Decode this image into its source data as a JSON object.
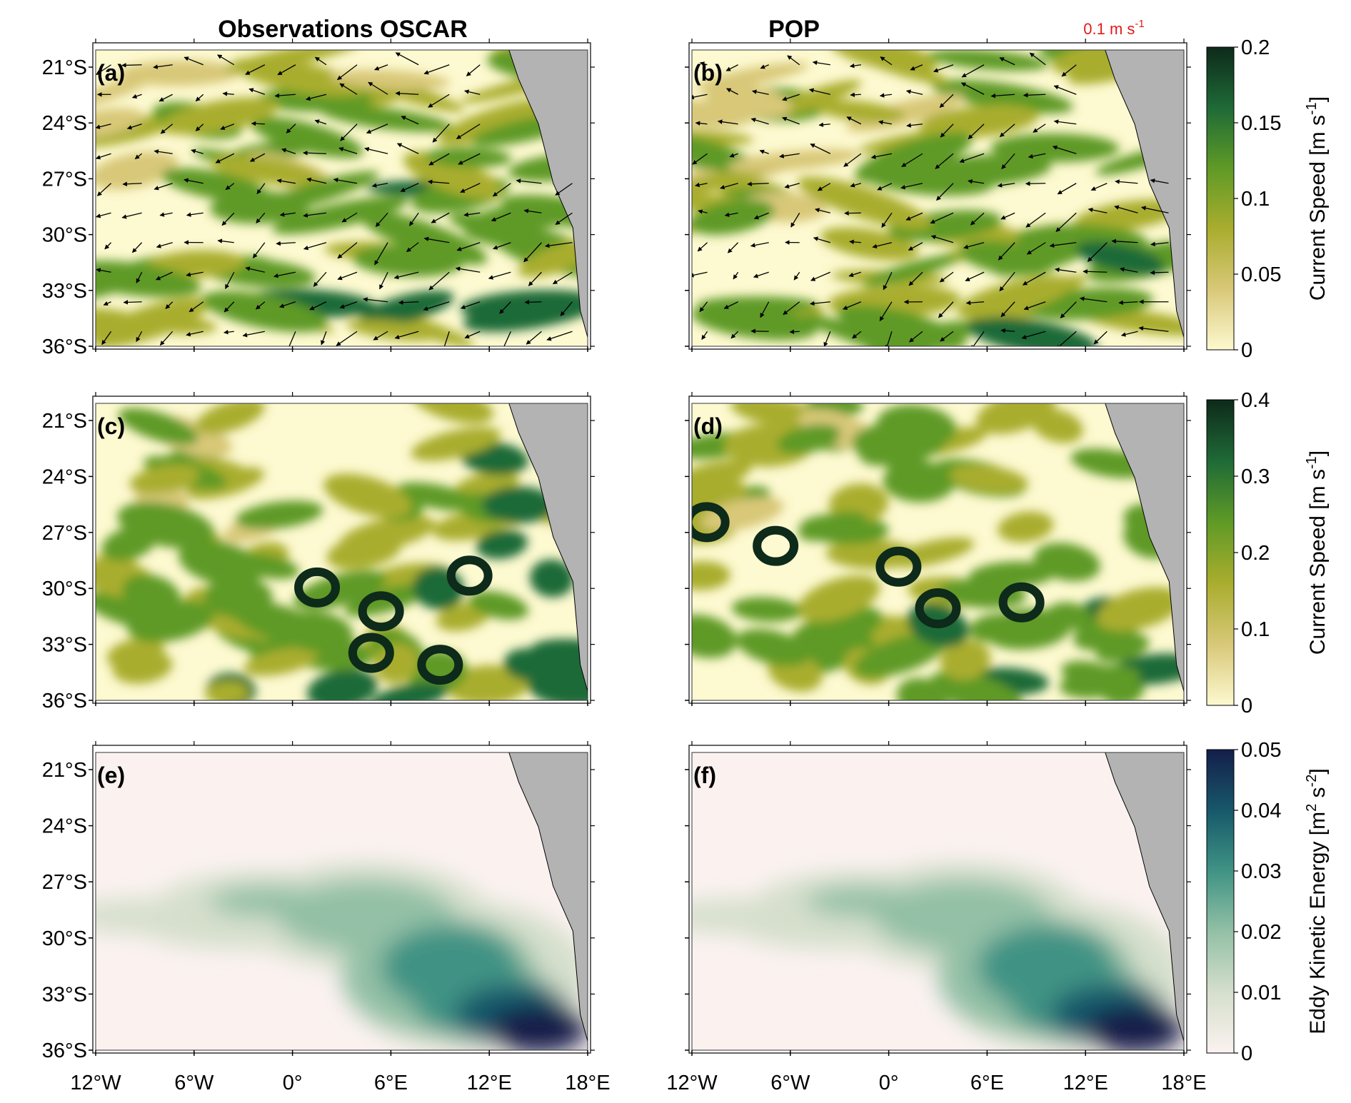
{
  "chart_data": {
    "type": "heatmap",
    "column_titles": [
      "Observations OSCAR",
      "POP"
    ],
    "x_ticks": [
      "12°W",
      "6°W",
      "0°",
      "6°E",
      "12°E",
      "18°E"
    ],
    "y_ticks": [
      "21°S",
      "24°S",
      "27°S",
      "30°S",
      "33°S",
      "36°S"
    ],
    "xlim": [
      -12,
      18
    ],
    "ylim": [
      -36,
      -20
    ],
    "panels": [
      {
        "label": "(a)",
        "row": 0,
        "col": 0,
        "field": "mean current speed with vectors"
      },
      {
        "label": "(b)",
        "row": 0,
        "col": 1,
        "field": "mean current speed with vectors"
      },
      {
        "label": "(c)",
        "row": 1,
        "col": 0,
        "field": "current speed"
      },
      {
        "label": "(d)",
        "row": 1,
        "col": 1,
        "field": "current speed"
      },
      {
        "label": "(e)",
        "row": 2,
        "col": 0,
        "field": "eddy kinetic energy"
      },
      {
        "label": "(f)",
        "row": 2,
        "col": 1,
        "field": "eddy kinetic energy"
      }
    ],
    "reference_vector": {
      "label": "0.1 m s",
      "exponent": "-1",
      "color": "#e41a1c"
    },
    "colorbars": [
      {
        "label": "Current Speed [m s",
        "exponent": "-1",
        "suffix": "]",
        "range": [
          0,
          0.2
        ],
        "ticks": [
          "0",
          "0.05",
          "0.1",
          "0.15",
          "0.2"
        ],
        "tick_values": [
          0,
          0.05,
          0.1,
          0.15,
          0.2
        ],
        "colors": [
          "#fdf9d0",
          "#d8c878",
          "#a9ad2e",
          "#5f9a26",
          "#1f6a37",
          "#0d2a1a"
        ]
      },
      {
        "label": "Current Speed [m s",
        "exponent": "-1",
        "suffix": "]",
        "range": [
          0,
          0.4
        ],
        "ticks": [
          "0",
          "0.1",
          "0.2",
          "0.3",
          "0.4"
        ],
        "tick_values": [
          0,
          0.1,
          0.2,
          0.3,
          0.4
        ],
        "colors": [
          "#fdf9d0",
          "#d8c878",
          "#a9ad2e",
          "#5f9a26",
          "#1f6a37",
          "#0d2a1a"
        ]
      },
      {
        "label": "Eddy Kinetic Energy [m",
        "exp1": "2",
        "mid": " s",
        "exp2": "-2",
        "suffix": "]",
        "range": [
          0,
          0.05
        ],
        "ticks": [
          "0",
          "0.01",
          "0.02",
          "0.03",
          "0.04",
          "0.05"
        ],
        "tick_values": [
          0,
          0.01,
          0.02,
          0.03,
          0.04,
          0.05
        ],
        "colors": [
          "#fbf2f0",
          "#d5dfcc",
          "#93c0a6",
          "#3f9384",
          "#17586a",
          "#141e4a"
        ]
      }
    ]
  }
}
